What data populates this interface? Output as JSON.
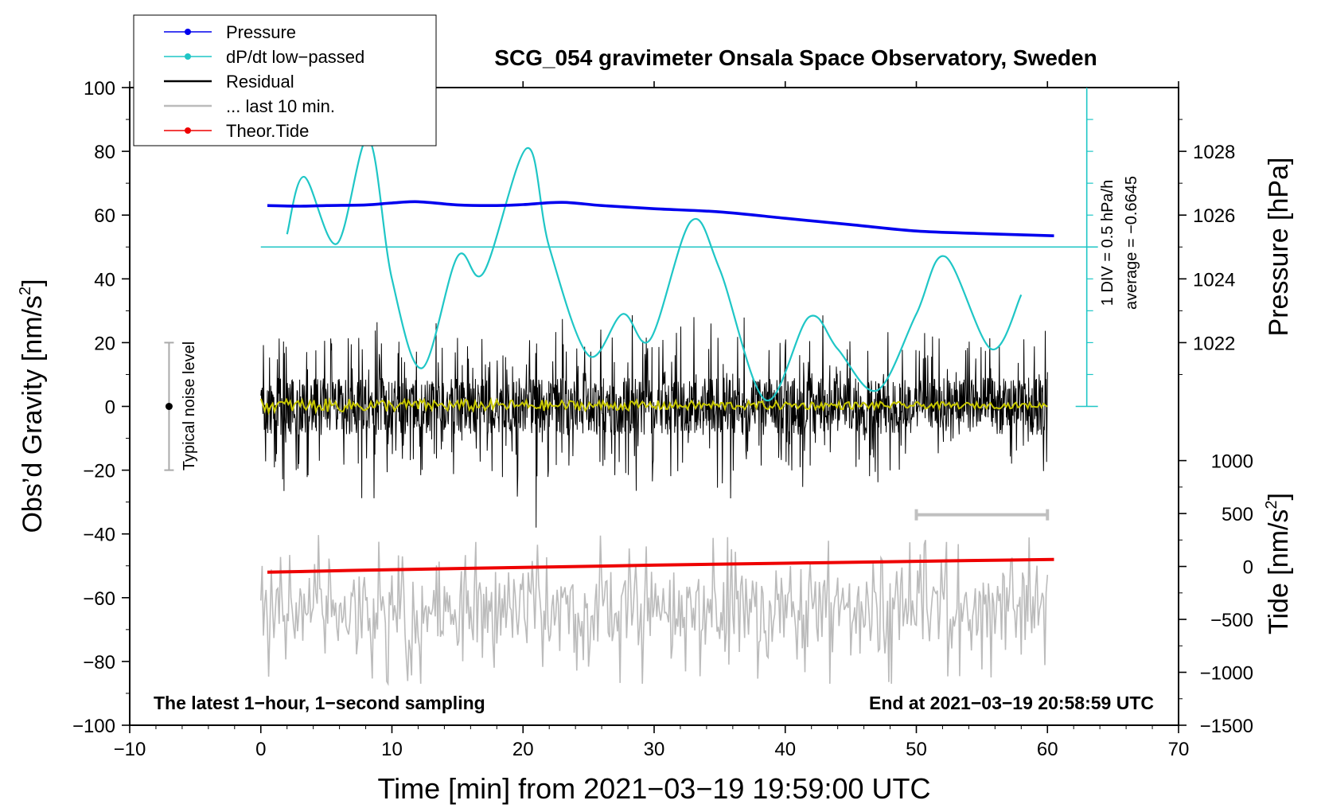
{
  "chart_data": {
    "type": "line",
    "title": "SCG_054 gravimeter Onsala Space Observatory, Sweden",
    "xlabel": "Time [min] from 2021−03−19 19:59:00 UTC",
    "ylabel_base": "Obs’d Gravity [nm/s",
    "ylabel_sup": "2",
    "ylabel_close": "]",
    "y2label": "Pressure [hPa]",
    "y3label_base": "Tide [nm/s",
    "y3label_sup": "2",
    "y3label_close": "]",
    "xlim": [
      -10,
      70
    ],
    "ylim": [
      -100,
      100
    ],
    "x_ticks": [
      -10,
      0,
      10,
      20,
      30,
      40,
      50,
      60,
      70
    ],
    "x_tick_labels": [
      "−10",
      "0",
      "10",
      "20",
      "30",
      "40",
      "50",
      "60",
      "70"
    ],
    "y_ticks": [
      -100,
      -80,
      -60,
      -40,
      -20,
      0,
      20,
      40,
      60,
      80,
      100
    ],
    "y_tick_labels": [
      "−100",
      "−80",
      "−60",
      "−40",
      "−20",
      "0",
      "20",
      "40",
      "60",
      "80",
      "100"
    ],
    "pressure_axis": {
      "ticks": [
        1022,
        1024,
        1026,
        1028
      ],
      "tick_labels": [
        "1022",
        "1024",
        "1026",
        "1028"
      ],
      "map_hpa_to_left": [
        [
          1022,
          20
        ],
        [
          1028,
          80
        ]
      ]
    },
    "tide_axis": {
      "ticks": [
        1000,
        500,
        0,
        -500,
        -1000,
        -1500
      ],
      "tick_labels": [
        "1000",
        "500",
        "0",
        "−500",
        "−1000",
        "−1500"
      ],
      "map_tide_to_left": [
        [
          1000,
          -17
        ],
        [
          -1500,
          -100
        ]
      ]
    },
    "legend": {
      "position": "top-left",
      "items": [
        {
          "label": "Pressure",
          "color": "#0000ee",
          "style": "line-dot"
        },
        {
          "label": "dP/dt low−passed",
          "color": "#1fc6c6",
          "style": "line-dot"
        },
        {
          "label": "Residual",
          "color": "#000000",
          "style": "line"
        },
        {
          "label": "... last 10 min.",
          "color": "#bbbbbb",
          "style": "line"
        },
        {
          "label": "Theor.Tide",
          "color": "#ee0000",
          "style": "line-dot"
        }
      ]
    },
    "series": [
      {
        "name": "Pressure",
        "color": "#0000ee",
        "units": "hPa",
        "x": [
          0.5,
          3,
          5,
          8,
          10,
          12,
          15,
          18,
          20,
          23,
          26,
          30,
          35,
          40,
          45,
          50,
          55,
          60.5
        ],
        "values": [
          1026.3,
          1026.28,
          1026.3,
          1026.32,
          1026.38,
          1026.42,
          1026.32,
          1026.3,
          1026.33,
          1026.4,
          1026.3,
          1026.2,
          1026.1,
          1025.9,
          1025.7,
          1025.5,
          1025.42,
          1025.35
        ]
      },
      {
        "name": "dP/dt low−passed",
        "color": "#1fc6c6",
        "units": "nm/s2 (plotted)",
        "x": [
          2,
          3.3,
          5.8,
          8.2,
          10,
          12.3,
          15,
          17,
          20.3,
          22,
          25,
          27.6,
          29.7,
          32.8,
          35,
          38.5,
          41.8,
          44,
          47,
          50,
          52.2,
          55.7,
          58
        ],
        "values": [
          54,
          72,
          51,
          84,
          40,
          12,
          47,
          42,
          81,
          50,
          16,
          29,
          21,
          58,
          43,
          2,
          28,
          18,
          5,
          29,
          47,
          18,
          35
        ]
      },
      {
        "name": "Theor.Tide",
        "color": "#ee0000",
        "units": "nm/s2",
        "x": [
          0.5,
          10,
          20,
          30,
          40,
          50,
          60.5
        ],
        "values": [
          -52,
          -51.2,
          -50.5,
          -49.8,
          -49.2,
          -48.6,
          -48
        ]
      },
      {
        "name": "Residual",
        "color": "#000000",
        "x_range": [
          0,
          60
        ],
        "amplitude_envelope": [
          -29,
          31
        ],
        "outlier_min": -38,
        "description_values": "noise about 0, typical range ±20"
      },
      {
        "name": "Residual smoothed",
        "color": "#c8c800",
        "x_range": [
          0,
          60
        ],
        "amplitude_envelope": [
          -2,
          3
        ]
      },
      {
        "name": "... last 10 min.",
        "color": "#bbbbbb",
        "x_range": [
          0,
          60
        ],
        "baseline": -64,
        "amplitude_envelope": [
          -87,
          -38
        ]
      }
    ],
    "dpdt_reference": {
      "average_level": 50,
      "div_label": "1 DIV = 0.5 hPa/h",
      "average_label": "average = −0.6645",
      "scale_x": 63,
      "scale_range": [
        0,
        100
      ]
    },
    "noise_bar": {
      "x": -7,
      "center": 0,
      "range": [
        -20,
        20
      ],
      "label": "Typical noise level"
    },
    "last10_bar": {
      "range": [
        50,
        60
      ],
      "y": -34
    },
    "annotations": {
      "bottom_left": "The latest 1−hour, 1−second sampling",
      "bottom_right": "End at 2021−03−19 20:58:59 UTC"
    },
    "colors": {
      "pressure": "#0000ee",
      "dpdt": "#1fc6c6",
      "residual": "#000000",
      "smooth": "#c8c800",
      "last10": "#bbbbbb",
      "tide": "#ee0000"
    }
  }
}
